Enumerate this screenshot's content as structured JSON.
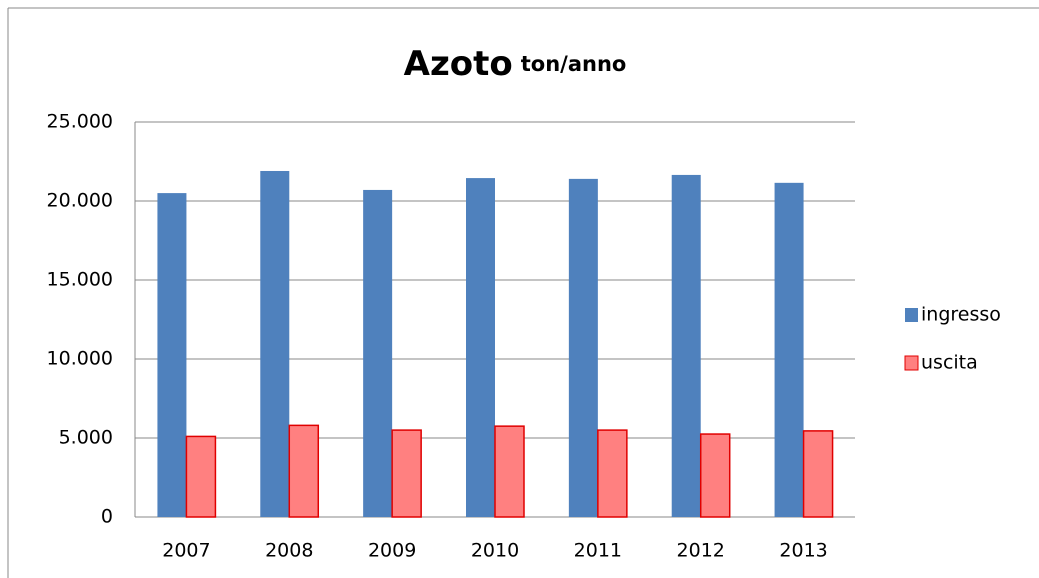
{
  "chart_data": {
    "type": "bar",
    "title": "Azoto",
    "subtitle": "ton/anno",
    "categories": [
      "2007",
      "2008",
      "2009",
      "2010",
      "2011",
      "2012",
      "2013"
    ],
    "series": [
      {
        "name": "ingresso",
        "color": "#4f81bd",
        "values": [
          20500,
          21900,
          20700,
          21450,
          21400,
          21650,
          21150
        ]
      },
      {
        "name": "uscita",
        "color": "#ff8080",
        "values": [
          5100,
          5800,
          5500,
          5750,
          5500,
          5250,
          5450
        ]
      }
    ],
    "ylim": [
      0,
      25000
    ],
    "yticks": [
      0,
      {
        "value": 5000,
        "label": "5.000"
      },
      {
        "value": 10000,
        "label": "10.000"
      },
      {
        "value": 15000,
        "label": "15.000"
      },
      {
        "value": 20000,
        "label": "20.000"
      },
      {
        "value": 25000,
        "label": "25.000"
      }
    ],
    "grid": true,
    "legend": "right"
  }
}
